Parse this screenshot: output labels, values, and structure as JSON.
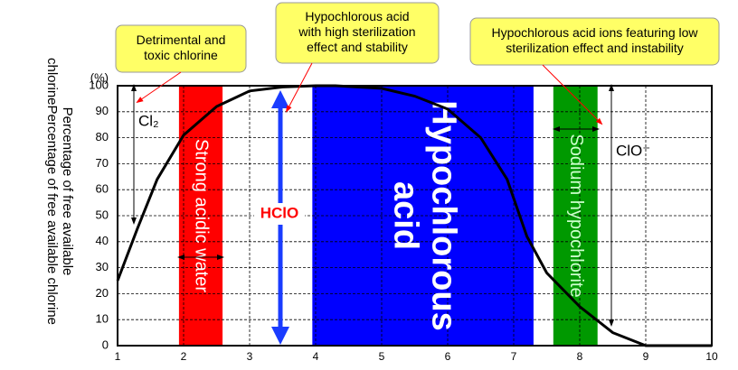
{
  "chart_data": {
    "type": "line",
    "x": [
      1,
      1.3,
      1.6,
      2,
      2.5,
      3,
      3.5,
      4,
      4.3,
      5,
      5.5,
      6,
      6.5,
      6.9,
      7.2,
      7.5,
      8,
      8.5,
      9,
      9.5,
      10
    ],
    "values": [
      25,
      45,
      64,
      81,
      92,
      98,
      99.5,
      100,
      100,
      99,
      96,
      91,
      80,
      64,
      42,
      28,
      15,
      5,
      0,
      0,
      0
    ],
    "color": "#000000",
    "xlim": [
      1,
      10
    ],
    "xticks": [
      1,
      2,
      3,
      4,
      5,
      6,
      7,
      8,
      9,
      10
    ],
    "ylim": [
      0,
      100
    ],
    "yticks": [
      0,
      10,
      20,
      30,
      40,
      50,
      60,
      70,
      80,
      90,
      100
    ],
    "grid": true,
    "y_unit": "(%)",
    "y_title": "Percentage of free available chlorinePercentage of free available chlorine",
    "regions": [
      {
        "lines": [
          "Strong acidic water"
        ],
        "x0": 1.93,
        "x1": 2.59,
        "color": "#ff0000",
        "text_color": "#ffffff",
        "size": 20
      },
      {
        "lines": [
          "Hypochlorous",
          "acid"
        ],
        "x0": 3.95,
        "x1": 7.3,
        "color": "#0000ff",
        "text_color": "#ffffff",
        "size": 38
      },
      {
        "lines": [
          "Sodium hypochlorite"
        ],
        "x0": 7.6,
        "x1": 8.27,
        "color": "#009900",
        "text_color": "#ccffcc",
        "size": 20
      }
    ],
    "species": [
      "Cl₂",
      "HClO",
      "ClO⁻"
    ],
    "annotations": [
      {
        "lines": [
          "Detrimental and",
          "toxic chlorine"
        ]
      },
      {
        "lines": [
          "Hypochlorous  acid",
          "with high sterilization",
          "effect and stability"
        ]
      },
      {
        "lines": [
          "Hypochlorous  acid ions featuring low",
          "sterilization effect and instability"
        ]
      }
    ]
  }
}
